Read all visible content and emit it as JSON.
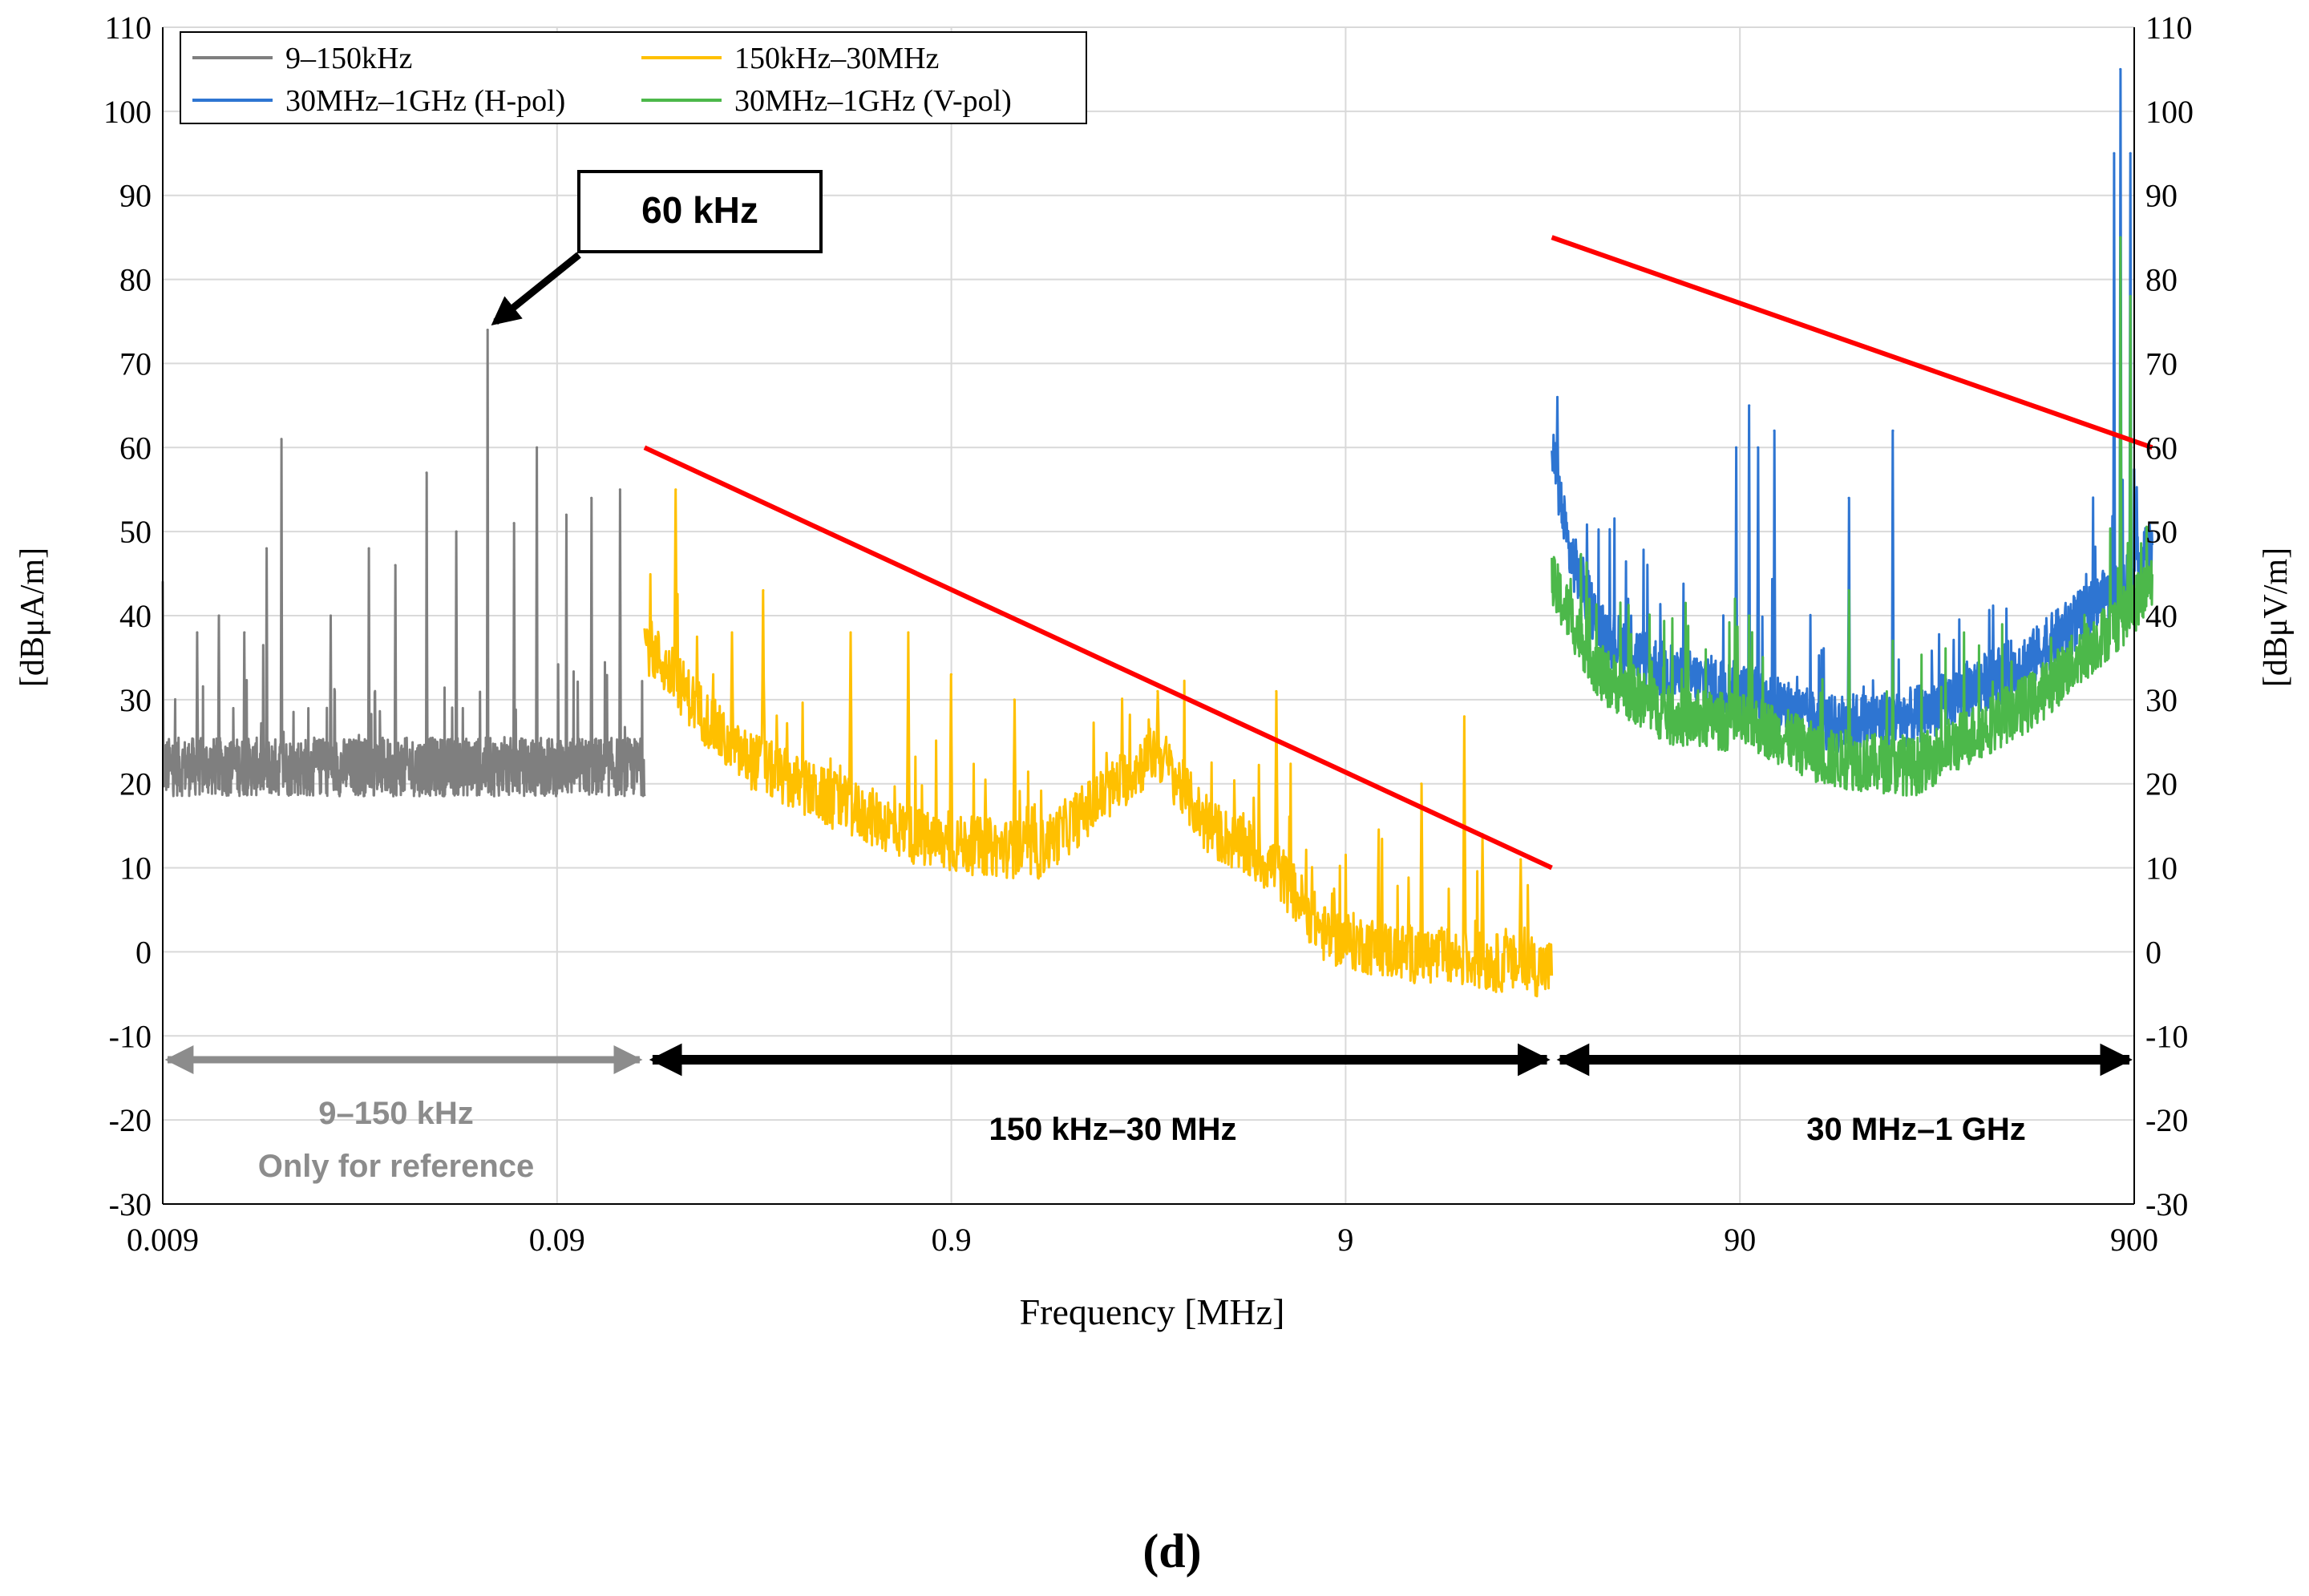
{
  "chart_data": {
    "type": "line",
    "subtitle": "(d)",
    "xlabel": "Frequency [MHz]",
    "x_scale": "log",
    "xlim": [
      0.009,
      900
    ],
    "x_ticks": [
      {
        "value": 0.009,
        "label": "0.009"
      },
      {
        "value": 0.09,
        "label": "0.09"
      },
      {
        "value": 0.9,
        "label": "0.9"
      },
      {
        "value": 9,
        "label": "9"
      },
      {
        "value": 90,
        "label": "90"
      },
      {
        "value": 900,
        "label": "900"
      }
    ],
    "ylabel_left": "[dBμA/m]",
    "ylabel_right": "[dBμV/m]",
    "ylim": [
      -30,
      110
    ],
    "y_ticks": [
      "-30",
      "-20",
      "-10",
      "0",
      "10",
      "20",
      "30",
      "40",
      "50",
      "60",
      "70",
      "80",
      "90",
      "100",
      "110"
    ],
    "grid": true,
    "legend_position": "top-left",
    "legend": [
      {
        "name": "9–150kHz",
        "color": "#7f7f7f"
      },
      {
        "name": "150kHz–30MHz",
        "color": "#ffc000"
      },
      {
        "name": "30MHz–1GHz (H-pol)",
        "color": "#2e75d2"
      },
      {
        "name": "30MHz–1GHz (V-pol)",
        "color": "#4cb84a"
      }
    ],
    "series": [
      {
        "name": "9–150kHz",
        "color": "#7f7f7f",
        "x_range": [
          0.009,
          0.15
        ],
        "baseline": 22,
        "peaks": [
          [
            0.009,
            44
          ],
          [
            0.011,
            38
          ],
          [
            0.0125,
            40
          ],
          [
            0.0145,
            38
          ],
          [
            0.0165,
            48
          ],
          [
            0.018,
            61
          ],
          [
            0.024,
            40
          ],
          [
            0.03,
            48
          ],
          [
            0.035,
            46
          ],
          [
            0.042,
            57
          ],
          [
            0.05,
            50
          ],
          [
            0.06,
            74
          ],
          [
            0.07,
            51
          ],
          [
            0.08,
            60
          ],
          [
            0.095,
            52
          ],
          [
            0.11,
            54
          ],
          [
            0.13,
            55
          ]
        ]
      },
      {
        "name": "150kHz–30MHz",
        "color": "#ffc000",
        "x_range": [
          0.15,
          30
        ],
        "baseline": [
          [
            0.15,
            37
          ],
          [
            0.25,
            24
          ],
          [
            0.4,
            19
          ],
          [
            0.8,
            13
          ],
          [
            1.5,
            12
          ],
          [
            3,
            24
          ],
          [
            4,
            15
          ],
          [
            6,
            10
          ],
          [
            8,
            2
          ],
          [
            12,
            0
          ],
          [
            30,
            -2
          ]
        ],
        "peaks": [
          [
            0.18,
            55
          ],
          [
            0.25,
            38
          ],
          [
            0.3,
            43
          ],
          [
            0.5,
            38
          ],
          [
            0.7,
            38
          ],
          [
            0.9,
            33
          ],
          [
            1.3,
            30
          ],
          [
            3,
            31
          ],
          [
            6,
            31
          ],
          [
            14,
            20
          ],
          [
            18,
            28
          ],
          [
            20,
            14
          ],
          [
            25,
            11
          ]
        ]
      },
      {
        "name": "30MHz–1GHz (H-pol)",
        "color": "#2e75d2",
        "x_range": [
          30,
          1000
        ],
        "baseline": [
          [
            30,
            60
          ],
          [
            33,
            48
          ],
          [
            40,
            38
          ],
          [
            60,
            33
          ],
          [
            90,
            31
          ],
          [
            150,
            27
          ],
          [
            250,
            28
          ],
          [
            500,
            35
          ],
          [
            850,
            44
          ],
          [
            1000,
            48
          ]
        ],
        "peaks": [
          [
            31,
            66
          ],
          [
            88,
            60
          ],
          [
            95,
            65
          ],
          [
            100,
            60
          ],
          [
            110,
            62
          ],
          [
            170,
            54
          ],
          [
            220,
            62
          ],
          [
            800,
            95
          ],
          [
            830,
            105
          ],
          [
            880,
            95
          ]
        ]
      },
      {
        "name": "30MHz–1GHz (V-pol)",
        "color": "#4cb84a",
        "x_range": [
          30,
          1000
        ],
        "baseline": [
          [
            30,
            44
          ],
          [
            40,
            33
          ],
          [
            60,
            28
          ],
          [
            100,
            27
          ],
          [
            150,
            23
          ],
          [
            250,
            22
          ],
          [
            500,
            30
          ],
          [
            850,
            40
          ],
          [
            1000,
            44
          ]
        ],
        "peaks": [
          [
            95,
            40
          ],
          [
            170,
            43
          ],
          [
            220,
            37
          ],
          [
            830,
            85
          ],
          [
            880,
            78
          ]
        ]
      }
    ],
    "limit_lines": [
      {
        "name": "limit 150kHz–30MHz",
        "color": "#ff0000",
        "points": [
          [
            0.15,
            60
          ],
          [
            30,
            10
          ]
        ]
      },
      {
        "name": "limit 30MHz–1GHz",
        "color": "#ff0000",
        "points": [
          [
            30,
            85
          ],
          [
            1000,
            60
          ]
        ]
      }
    ],
    "annotations": [
      {
        "text": "60 kHz",
        "x": 0.06,
        "y": 74
      },
      {
        "text": "9–150 kHz",
        "color": "#8c8c8c",
        "range": [
          0.009,
          0.15
        ]
      },
      {
        "text": "Only for reference",
        "color": "#8c8c8c"
      },
      {
        "text": "150 kHz–30 MHz",
        "color": "#000000",
        "range": [
          0.15,
          30
        ]
      },
      {
        "text": "30 MHz–1 GHz",
        "color": "#000000",
        "range": [
          30,
          1000
        ]
      }
    ]
  }
}
